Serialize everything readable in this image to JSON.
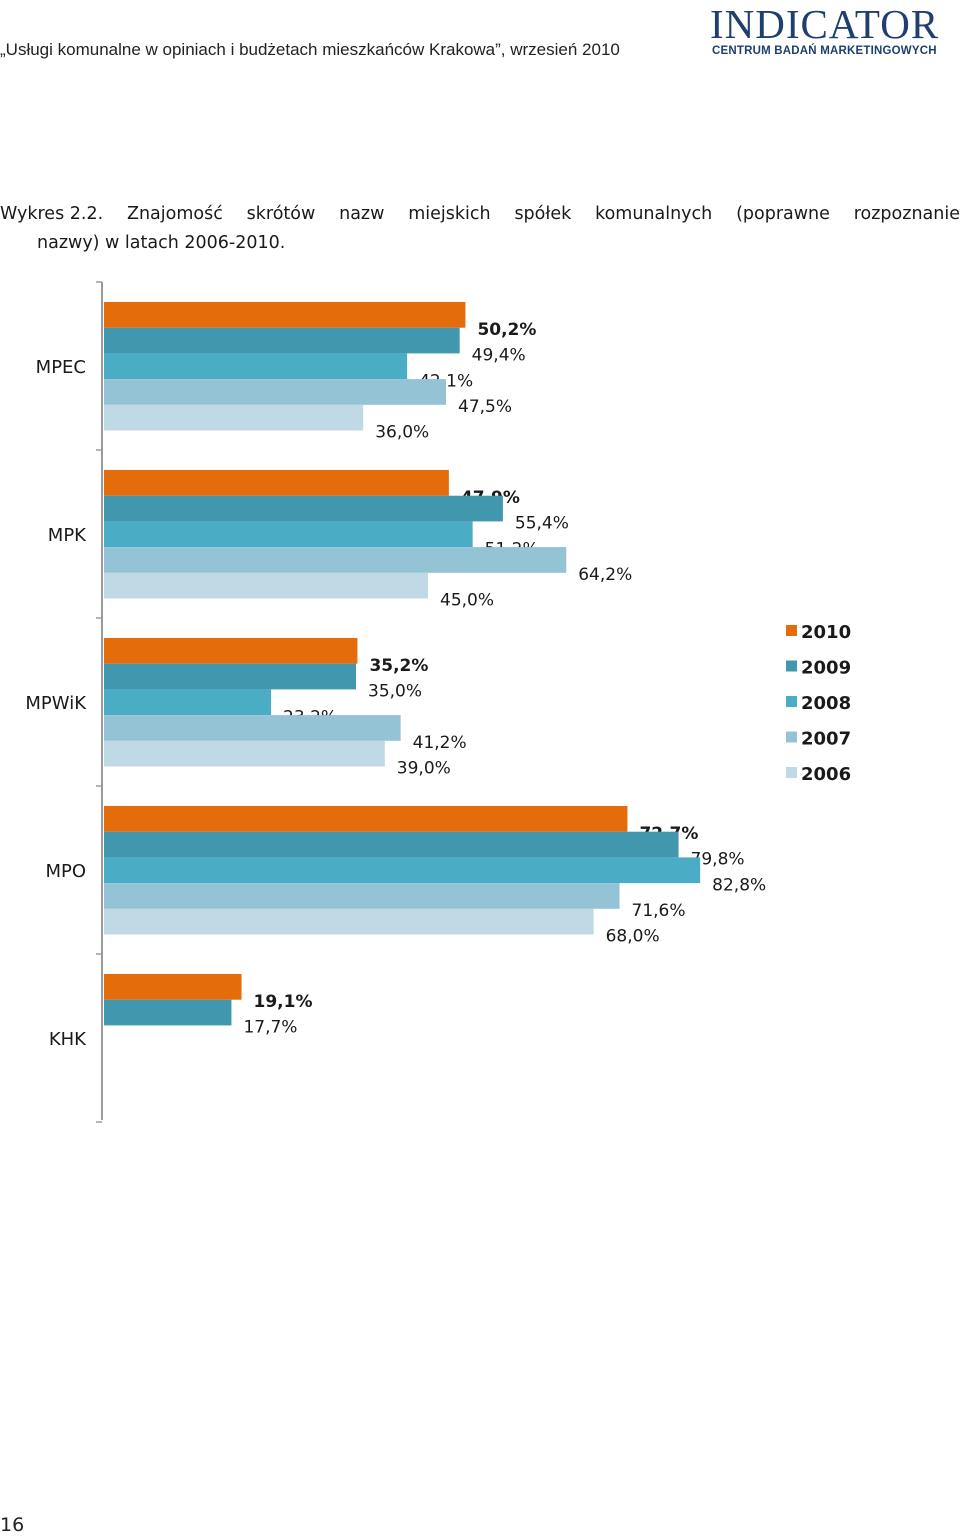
{
  "header": {
    "running_title": "„Usługi komunalne w opiniach i budżetach mieszkańców Krakowa”, wrzesień 2010",
    "logo_text": "INDICATOR",
    "logo_subtitle": "CENTRUM BADAŃ MARKETINGOWYCH"
  },
  "caption": {
    "label": "Wykres 2.2.",
    "line1_words": [
      "Znajomość",
      "skrótów",
      "nazw",
      "miejskich",
      "spółek",
      "komunalnych",
      "(poprawne",
      "rozpoznanie"
    ],
    "line2": "nazwy) w latach 2006-2010."
  },
  "chart_data": {
    "type": "bar",
    "orientation": "horizontal",
    "categories": [
      "MPEC",
      "MPK",
      "MPWiK",
      "MPO",
      "KHK"
    ],
    "series": [
      {
        "name": "2010",
        "color": "#e46c0a",
        "bold": true,
        "values": [
          50.2,
          47.9,
          35.2,
          72.7,
          19.1
        ],
        "labels": [
          "50,2%",
          "47,9%",
          "35,2%",
          "72,7%",
          "19,1%"
        ]
      },
      {
        "name": "2009",
        "color": "#4197ae",
        "bold": false,
        "values": [
          49.4,
          55.4,
          35.0,
          79.8,
          17.7
        ],
        "labels": [
          "49,4%",
          "55,4%",
          "35,0%",
          "79,8%",
          "17,7%"
        ]
      },
      {
        "name": "2008",
        "color": "#4bacc6",
        "bold": false,
        "values": [
          42.1,
          51.2,
          23.2,
          82.8,
          null
        ],
        "labels": [
          "42,1%",
          "51,2%",
          "23,2%",
          "82,8%",
          ""
        ]
      },
      {
        "name": "2007",
        "color": "#93c3d5",
        "bold": false,
        "values": [
          47.5,
          64.2,
          41.2,
          71.6,
          null
        ],
        "labels": [
          "47,5%",
          "64,2%",
          "41,2%",
          "71,6%",
          ""
        ]
      },
      {
        "name": "2006",
        "color": "#bfd9e5",
        "bold": false,
        "values": [
          36.0,
          45.0,
          39.0,
          68.0,
          null
        ],
        "labels": [
          "36,0%",
          "45,0%",
          "39,0%",
          "68,0%",
          ""
        ]
      }
    ],
    "xlim": [
      0,
      100
    ],
    "legend_position": "right",
    "grid": false
  },
  "page": {
    "number": "16"
  }
}
